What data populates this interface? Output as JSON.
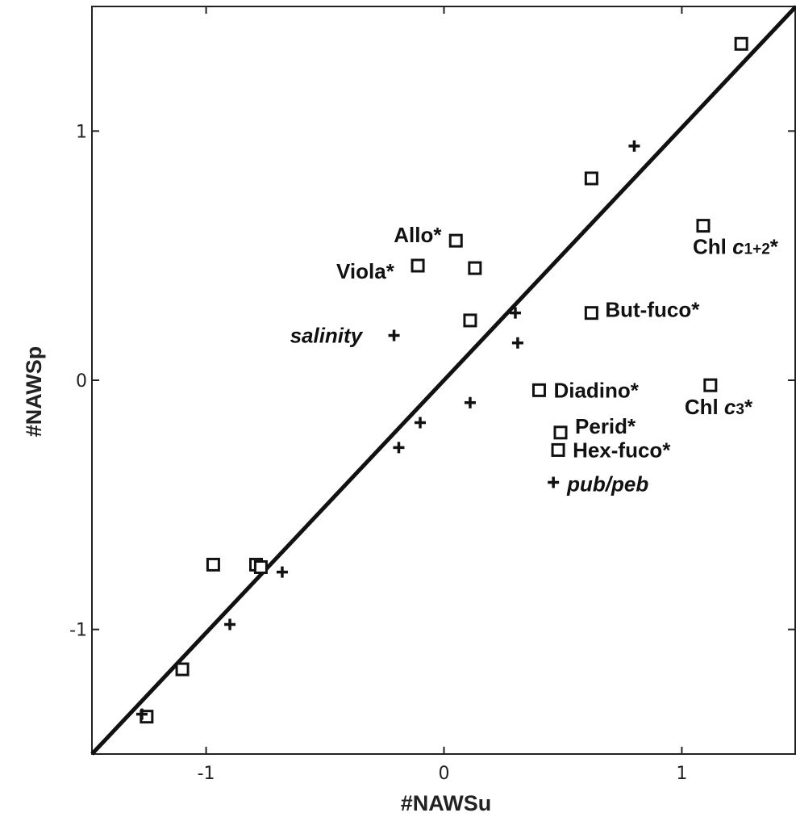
{
  "chart_data": {
    "type": "scatter",
    "title": "",
    "xlabel": "#NAWSu",
    "ylabel": "#NAWSp",
    "xlim": [
      -1.48,
      1.48
    ],
    "ylim": [
      -1.5,
      1.5
    ],
    "xticks": [
      -1,
      0,
      1
    ],
    "yticks": [
      -1,
      0,
      1
    ],
    "xtick_labels": [
      "-1",
      "0",
      "1"
    ],
    "ytick_labels": [
      "-1",
      "0",
      "1"
    ],
    "grid": false,
    "reference_line": {
      "x": [
        -1.48,
        1.48
      ],
      "y": [
        -1.5,
        1.5
      ]
    },
    "series": [
      {
        "marker": "square",
        "points": [
          {
            "x": 1.25,
            "y": 1.35,
            "label": ""
          },
          {
            "x": 0.62,
            "y": 0.81,
            "label": ""
          },
          {
            "x": 0.05,
            "y": 0.56,
            "label": "Allo*"
          },
          {
            "x": -0.11,
            "y": 0.46,
            "label": "Viola*"
          },
          {
            "x": 0.13,
            "y": 0.45,
            "label": ""
          },
          {
            "x": 1.09,
            "y": 0.62,
            "label": "Chl c1+2*"
          },
          {
            "x": 0.62,
            "y": 0.27,
            "label": "But-fuco*"
          },
          {
            "x": 0.11,
            "y": 0.24,
            "label": ""
          },
          {
            "x": 1.12,
            "y": -0.02,
            "label": "Chl c3*"
          },
          {
            "x": 0.4,
            "y": -0.04,
            "label": "Diadino*"
          },
          {
            "x": 0.49,
            "y": -0.21,
            "label": "Perid*"
          },
          {
            "x": 0.48,
            "y": -0.28,
            "label": "Hex-fuco*"
          },
          {
            "x": -0.97,
            "y": -0.74,
            "label": ""
          },
          {
            "x": -0.79,
            "y": -0.74,
            "label": ""
          },
          {
            "x": -0.77,
            "y": -0.75,
            "label": ""
          },
          {
            "x": -1.1,
            "y": -1.16,
            "label": ""
          },
          {
            "x": -1.25,
            "y": -1.35,
            "label": ""
          }
        ]
      },
      {
        "marker": "cross",
        "points": [
          {
            "x": 0.8,
            "y": 0.94,
            "label": ""
          },
          {
            "x": 0.3,
            "y": 0.27,
            "label": ""
          },
          {
            "x": -0.21,
            "y": 0.18,
            "label": "salinity"
          },
          {
            "x": 0.31,
            "y": 0.15,
            "label": ""
          },
          {
            "x": 0.11,
            "y": -0.09,
            "label": ""
          },
          {
            "x": -0.1,
            "y": -0.17,
            "label": ""
          },
          {
            "x": -0.19,
            "y": -0.27,
            "label": ""
          },
          {
            "x": 0.46,
            "y": -0.41,
            "label": "pub/peb"
          },
          {
            "x": -0.68,
            "y": -0.77,
            "label": ""
          },
          {
            "x": -0.9,
            "y": -0.98,
            "label": ""
          },
          {
            "x": -1.27,
            "y": -1.34,
            "label": ""
          }
        ]
      }
    ]
  }
}
